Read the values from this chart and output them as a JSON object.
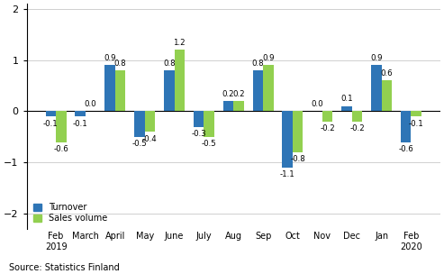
{
  "categories": [
    "Feb\n2019",
    "March",
    "April",
    "May",
    "June",
    "July",
    "Aug",
    "Sep",
    "Oct",
    "Nov",
    "Dec",
    "Jan",
    "Feb\n2020"
  ],
  "turnover": [
    -0.1,
    -0.1,
    0.9,
    -0.5,
    0.8,
    -0.3,
    0.2,
    0.8,
    -1.1,
    0.0,
    0.1,
    0.9,
    -0.6
  ],
  "sales_volume": [
    -0.6,
    0.0,
    0.8,
    -0.4,
    1.2,
    -0.5,
    0.2,
    0.9,
    -0.8,
    -0.2,
    -0.2,
    0.6,
    -0.1
  ],
  "turnover_color": "#2E75B6",
  "sales_color": "#92D050",
  "ylim": [
    -2.3,
    2.1
  ],
  "yticks": [
    -2,
    -1,
    0,
    1,
    2
  ],
  "legend_labels": [
    "Turnover",
    "Sales volume"
  ],
  "source_text": "Source: Statistics Finland",
  "bar_width": 0.35
}
